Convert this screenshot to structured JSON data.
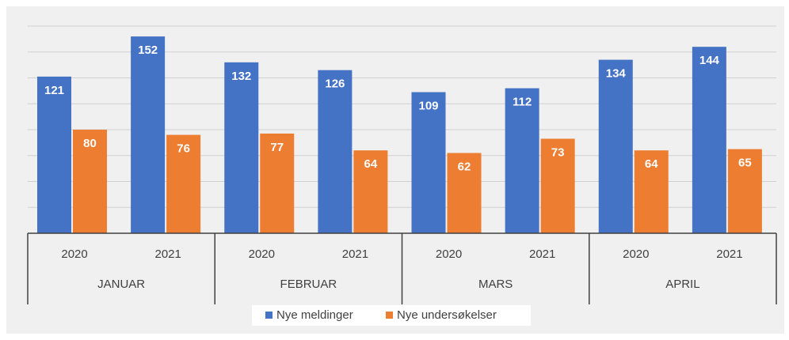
{
  "chart_data": {
    "type": "bar",
    "categories": [
      "2020",
      "2021",
      "2020",
      "2021",
      "2020",
      "2021",
      "2020",
      "2021"
    ],
    "groups": [
      "JANUAR",
      "FEBRUAR",
      "MARS",
      "APRIL"
    ],
    "series": [
      {
        "name": "Nye meldinger",
        "color": "#4472c4",
        "values": [
          121,
          152,
          132,
          126,
          109,
          112,
          134,
          144
        ]
      },
      {
        "name": "Nye undersøkelser",
        "color": "#ed7d31",
        "values": [
          80,
          76,
          77,
          64,
          62,
          73,
          64,
          65
        ]
      }
    ],
    "ylim": [
      0,
      160
    ],
    "yticks": [
      0,
      20,
      40,
      60,
      80,
      100,
      120,
      140,
      160
    ],
    "grid": true,
    "legend": "bottom"
  }
}
